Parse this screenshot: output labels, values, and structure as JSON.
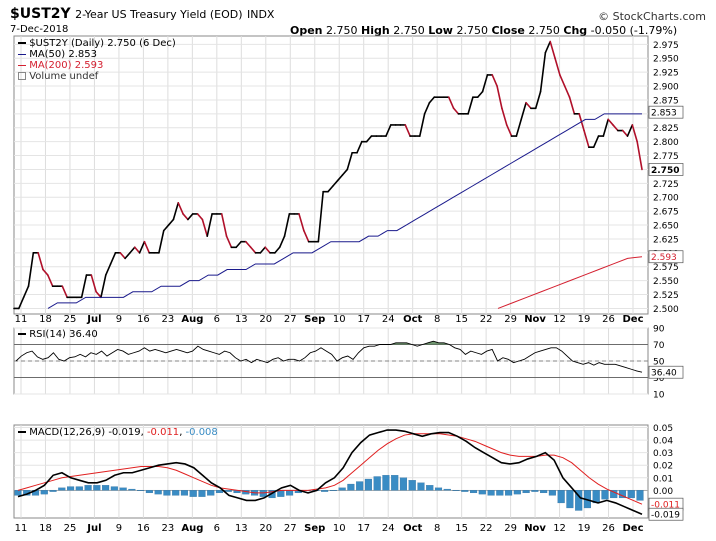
{
  "header": {
    "symbol": "$UST2Y",
    "description": "2-Year US Treasury Yield (EOD)",
    "exchange": "INDX",
    "date": "7-Dec-2018",
    "brand": "© StockCharts.com",
    "ohlc": {
      "open_label": "Open",
      "open": "2.750",
      "high_label": "High",
      "high": "2.750",
      "low_label": "Low",
      "low": "2.750",
      "close_label": "Close",
      "close": "2.750",
      "chg_label": "Chg",
      "chg": "-0.050 (-1.79%)"
    }
  },
  "legend": {
    "price": "$UST2Y (Daily) 2.750 (6 Dec)",
    "ma50": "MA(50) 2.853",
    "ma200": "MA(200) 2.593",
    "volume": "Volume undef",
    "rsi": "RSI(14) 36.40",
    "macd_prefix": "MACD(12,26,9)",
    "macd_val": "-0.019",
    "macd_sig": "-0.011",
    "macd_hist": "-0.008"
  },
  "colors": {
    "price_up": "#000000",
    "price_down": "#b0102a",
    "ma50": "#1a1a8c",
    "ma200": "#d42030",
    "rsi_fill": "#4a7a4a",
    "hist": "#3a8cc4",
    "macd": "#000000",
    "signal": "#e02020"
  },
  "x_axis_labels": [
    "11",
    "18",
    "25",
    "Jul",
    "9",
    "16",
    "23",
    "Aug",
    "6",
    "13",
    "20",
    "27",
    "Sep",
    "10",
    "17",
    "24",
    "Oct",
    "8",
    "15",
    "22",
    "29",
    "Nov",
    "12",
    "19",
    "26",
    "Dec"
  ],
  "x_axis_bold": [
    "Jul",
    "Aug",
    "Sep",
    "Oct",
    "Nov",
    "Dec"
  ],
  "chart_data": [
    {
      "type": "line",
      "title": "$UST2Y (Daily)",
      "ylim": [
        2.49,
        2.99
      ],
      "y_ticks": [
        "2.975",
        "2.950",
        "2.925",
        "2.900",
        "2.875",
        "2.850",
        "2.825",
        "2.800",
        "2.775",
        "2.750",
        "2.725",
        "2.700",
        "2.675",
        "2.650",
        "2.625",
        "2.600",
        "2.575",
        "2.550",
        "2.525",
        "2.500"
      ],
      "last_labels": {
        "ma50": "2.853",
        "close": "2.750",
        "ma200": "2.593"
      },
      "series": [
        {
          "name": "$UST2Y",
          "values": [
            2.5,
            2.5,
            2.52,
            2.54,
            2.6,
            2.6,
            2.57,
            2.56,
            2.54,
            2.54,
            2.54,
            2.52,
            2.52,
            2.52,
            2.52,
            2.56,
            2.56,
            2.53,
            2.52,
            2.56,
            2.58,
            2.6,
            2.6,
            2.59,
            2.6,
            2.61,
            2.6,
            2.62,
            2.6,
            2.6,
            2.6,
            2.64,
            2.65,
            2.66,
            2.69,
            2.67,
            2.66,
            2.67,
            2.67,
            2.66,
            2.63,
            2.67,
            2.67,
            2.67,
            2.63,
            2.61,
            2.61,
            2.62,
            2.62,
            2.61,
            2.6,
            2.6,
            2.61,
            2.6,
            2.6,
            2.61,
            2.63,
            2.67,
            2.67,
            2.67,
            2.64,
            2.62,
            2.62,
            2.62,
            2.71,
            2.71,
            2.72,
            2.73,
            2.74,
            2.75,
            2.78,
            2.78,
            2.8,
            2.8,
            2.81,
            2.81,
            2.81,
            2.81,
            2.83,
            2.83,
            2.83,
            2.83,
            2.81,
            2.81,
            2.81,
            2.85,
            2.87,
            2.88,
            2.88,
            2.88,
            2.88,
            2.86,
            2.85,
            2.85,
            2.85,
            2.88,
            2.88,
            2.89,
            2.92,
            2.92,
            2.9,
            2.86,
            2.83,
            2.81,
            2.81,
            2.84,
            2.87,
            2.86,
            2.86,
            2.89,
            2.96,
            2.98,
            2.95,
            2.92,
            2.9,
            2.88,
            2.85,
            2.85,
            2.82,
            2.79,
            2.79,
            2.81,
            2.81,
            2.84,
            2.83,
            2.82,
            2.82,
            2.81,
            2.83,
            2.8,
            2.75
          ]
        },
        {
          "name": "MA(50)",
          "values": [
            2.5,
            2.51,
            2.51,
            2.51,
            2.52,
            2.52,
            2.52,
            2.52,
            2.52,
            2.53,
            2.53,
            2.53,
            2.54,
            2.54,
            2.54,
            2.55,
            2.55,
            2.56,
            2.56,
            2.57,
            2.57,
            2.57,
            2.58,
            2.58,
            2.58,
            2.59,
            2.6,
            2.6,
            2.6,
            2.61,
            2.62,
            2.62,
            2.62,
            2.62,
            2.63,
            2.63,
            2.64,
            2.64,
            2.65,
            2.66,
            2.67,
            2.68,
            2.69,
            2.7,
            2.71,
            2.72,
            2.73,
            2.74,
            2.75,
            2.76,
            2.77,
            2.78,
            2.79,
            2.8,
            2.81,
            2.82,
            2.83,
            2.84,
            2.84,
            2.85,
            2.85,
            2.85,
            2.85,
            2.85
          ]
        },
        {
          "name": "MA(200)",
          "values": [
            2.5,
            2.51,
            2.52,
            2.53,
            2.54,
            2.55,
            2.56,
            2.57,
            2.58,
            2.59,
            2.593
          ]
        }
      ]
    },
    {
      "type": "line",
      "title": "RSI(14)",
      "ylim": [
        10,
        90
      ],
      "y_ticks": [
        "90",
        "70",
        "50",
        "30",
        "10"
      ],
      "last_label": "36.40",
      "series": [
        {
          "name": "RSI(14)",
          "values": [
            50,
            56,
            60,
            62,
            55,
            52,
            54,
            60,
            52,
            50,
            54,
            55,
            58,
            55,
            60,
            58,
            62,
            56,
            60,
            64,
            62,
            58,
            60,
            62,
            66,
            62,
            64,
            62,
            60,
            62,
            64,
            62,
            60,
            62,
            68,
            64,
            62,
            60,
            58,
            62,
            60,
            54,
            50,
            52,
            48,
            52,
            50,
            48,
            52,
            54,
            50,
            52,
            52,
            50,
            54,
            60,
            62,
            66,
            62,
            58,
            50,
            54,
            56,
            52,
            60,
            66,
            68,
            68,
            70,
            70,
            70,
            72,
            72,
            72,
            70,
            68,
            70,
            72,
            74,
            72,
            72,
            70,
            66,
            64,
            58,
            62,
            60,
            58,
            62,
            64,
            50,
            54,
            52,
            48,
            50,
            52,
            56,
            60,
            62,
            64,
            66,
            66,
            62,
            56,
            50,
            48,
            46,
            48,
            45,
            48,
            46,
            46,
            46,
            44,
            42,
            40,
            38,
            36.4
          ]
        }
      ]
    },
    {
      "type": "line",
      "title": "MACD(12,26,9)",
      "ylim": [
        -0.022,
        0.052
      ],
      "y_ticks": [
        "0.05",
        "0.04",
        "0.03",
        "0.02",
        "0.01",
        "0.00"
      ],
      "last_labels": {
        "signal": "-0.011",
        "macd": "-0.019"
      },
      "series": [
        {
          "name": "MACD",
          "values": [
            -0.005,
            -0.003,
            0.0,
            0.004,
            0.012,
            0.014,
            0.01,
            0.008,
            0.006,
            0.006,
            0.008,
            0.012,
            0.014,
            0.014,
            0.016,
            0.018,
            0.02,
            0.021,
            0.022,
            0.021,
            0.018,
            0.012,
            0.006,
            0.002,
            -0.004,
            -0.006,
            -0.008,
            -0.008,
            -0.006,
            -0.002,
            0.002,
            0.004,
            0.0,
            -0.002,
            0.0,
            0.006,
            0.01,
            0.018,
            0.03,
            0.038,
            0.044,
            0.046,
            0.048,
            0.048,
            0.047,
            0.045,
            0.043,
            0.045,
            0.046,
            0.046,
            0.043,
            0.039,
            0.034,
            0.03,
            0.026,
            0.022,
            0.021,
            0.022,
            0.025,
            0.027,
            0.03,
            0.024,
            0.01,
            0.002,
            -0.006,
            -0.008,
            -0.01,
            -0.008,
            -0.01,
            -0.013,
            -0.016,
            -0.019
          ]
        },
        {
          "name": "Signal",
          "values": [
            0.0,
            0.002,
            0.004,
            0.006,
            0.008,
            0.01,
            0.011,
            0.012,
            0.013,
            0.014,
            0.015,
            0.016,
            0.017,
            0.018,
            0.019,
            0.019,
            0.019,
            0.018,
            0.016,
            0.013,
            0.01,
            0.007,
            0.004,
            0.002,
            0.001,
            0.0,
            -0.001,
            -0.002,
            -0.002,
            -0.001,
            0.0,
            0.0,
            0.0,
            0.0,
            0.001,
            0.002,
            0.004,
            0.008,
            0.014,
            0.02,
            0.026,
            0.032,
            0.037,
            0.041,
            0.044,
            0.045,
            0.045,
            0.045,
            0.045,
            0.044,
            0.043,
            0.041,
            0.039,
            0.036,
            0.033,
            0.03,
            0.028,
            0.027,
            0.027,
            0.027,
            0.028,
            0.028,
            0.026,
            0.022,
            0.016,
            0.01,
            0.005,
            0.001,
            -0.002,
            -0.005,
            -0.008,
            -0.011
          ]
        },
        {
          "name": "Histogram",
          "values": [
            -0.004,
            -0.004,
            -0.004,
            -0.003,
            -0.001,
            0.002,
            0.003,
            0.003,
            0.004,
            0.004,
            0.004,
            0.003,
            0.002,
            0.001,
            0.0,
            -0.002,
            -0.003,
            -0.004,
            -0.004,
            -0.004,
            -0.005,
            -0.005,
            -0.004,
            -0.002,
            -0.001,
            -0.002,
            -0.003,
            -0.004,
            -0.005,
            -0.006,
            -0.005,
            -0.004,
            -0.002,
            0.0,
            0.0,
            -0.001,
            0.0,
            0.002,
            0.005,
            0.007,
            0.009,
            0.011,
            0.012,
            0.012,
            0.01,
            0.008,
            0.006,
            0.004,
            0.002,
            0.001,
            0.0,
            -0.001,
            -0.002,
            -0.003,
            -0.004,
            -0.004,
            -0.004,
            -0.003,
            -0.002,
            -0.001,
            -0.002,
            -0.004,
            -0.01,
            -0.014,
            -0.016,
            -0.014,
            -0.01,
            -0.007,
            -0.006,
            -0.006,
            -0.006,
            -0.008
          ]
        }
      ]
    }
  ]
}
